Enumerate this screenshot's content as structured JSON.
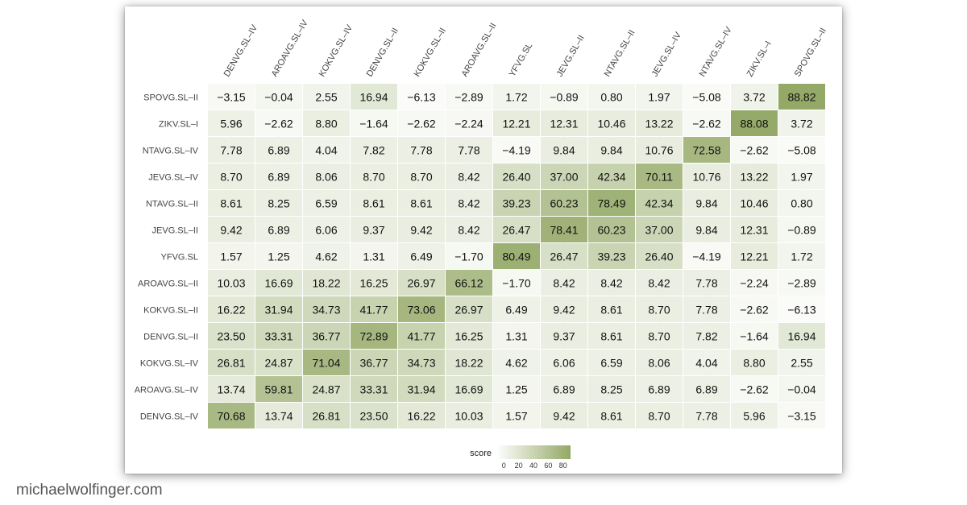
{
  "chart_data": {
    "type": "heatmap",
    "x_labels": [
      "DENVG.SL–IV",
      "AROAVG.SL–IV",
      "KOKVG.SL–IV",
      "DENVG.SL–II",
      "KOKVG.SL–II",
      "AROAVG.SL–II",
      "YFVG.SL",
      "JEVG.SL–II",
      "NTAVG.SL–II",
      "JEVG.SL–IV",
      "NTAVG.SL–IV",
      "ZIKV.SL–I",
      "SPOVG.SL–II"
    ],
    "y_labels": [
      "SPOVG.SL–II",
      "ZIKV.SL–I",
      "NTAVG.SL–IV",
      "JEVG.SL–IV",
      "NTAVG.SL–II",
      "JEVG.SL–II",
      "YFVG.SL",
      "AROAVG.SL–II",
      "KOKVG.SL–II",
      "DENVG.SL–II",
      "KOKVG.SL–IV",
      "AROAVG.SL–IV",
      "DENVG.SL–IV"
    ],
    "values": [
      [
        "−3.15",
        "−0.04",
        "2.55",
        "16.94",
        "−6.13",
        "−2.89",
        "1.72",
        "−0.89",
        "0.80",
        "1.97",
        "−5.08",
        "3.72",
        "88.82"
      ],
      [
        "5.96",
        "−2.62",
        "8.80",
        "−1.64",
        "−2.62",
        "−2.24",
        "12.21",
        "12.31",
        "10.46",
        "13.22",
        "−2.62",
        "88.08",
        "3.72"
      ],
      [
        "7.78",
        "6.89",
        "4.04",
        "7.82",
        "7.78",
        "7.78",
        "−4.19",
        "9.84",
        "9.84",
        "10.76",
        "72.58",
        "−2.62",
        "−5.08"
      ],
      [
        "8.70",
        "6.89",
        "8.06",
        "8.70",
        "8.70",
        "8.42",
        "26.40",
        "37.00",
        "42.34",
        "70.11",
        "10.76",
        "13.22",
        "1.97"
      ],
      [
        "8.61",
        "8.25",
        "6.59",
        "8.61",
        "8.61",
        "8.42",
        "39.23",
        "60.23",
        "78.49",
        "42.34",
        "9.84",
        "10.46",
        "0.80"
      ],
      [
        "9.42",
        "6.89",
        "6.06",
        "9.37",
        "9.42",
        "8.42",
        "26.47",
        "78.41",
        "60.23",
        "37.00",
        "9.84",
        "12.31",
        "−0.89"
      ],
      [
        "1.57",
        "1.25",
        "4.62",
        "1.31",
        "6.49",
        "−1.70",
        "80.49",
        "26.47",
        "39.23",
        "26.40",
        "−4.19",
        "12.21",
        "1.72"
      ],
      [
        "10.03",
        "16.69",
        "18.22",
        "16.25",
        "26.97",
        "66.12",
        "−1.70",
        "8.42",
        "8.42",
        "8.42",
        "7.78",
        "−2.24",
        "−2.89"
      ],
      [
        "16.22",
        "31.94",
        "34.73",
        "41.77",
        "73.06",
        "26.97",
        "6.49",
        "9.42",
        "8.61",
        "8.70",
        "7.78",
        "−2.62",
        "−6.13"
      ],
      [
        "23.50",
        "33.31",
        "36.77",
        "72.89",
        "41.77",
        "16.25",
        "1.31",
        "9.37",
        "8.61",
        "8.70",
        "7.82",
        "−1.64",
        "16.94"
      ],
      [
        "26.81",
        "24.87",
        "71.04",
        "36.77",
        "34.73",
        "18.22",
        "4.62",
        "6.06",
        "6.59",
        "8.06",
        "4.04",
        "8.80",
        "2.55"
      ],
      [
        "13.74",
        "59.81",
        "24.87",
        "33.31",
        "31.94",
        "16.69",
        "1.25",
        "6.89",
        "8.25",
        "6.89",
        "6.89",
        "−2.62",
        "−0.04"
      ],
      [
        "70.68",
        "13.74",
        "26.81",
        "23.50",
        "16.22",
        "10.03",
        "1.57",
        "9.42",
        "8.61",
        "8.70",
        "7.78",
        "5.96",
        "−3.15"
      ]
    ],
    "color_scale": {
      "low": "#ffffff",
      "high": "#93a865",
      "domain": [
        -10,
        90
      ]
    },
    "legend": {
      "title": "score",
      "ticks": [
        "0",
        "20",
        "40",
        "60",
        "80"
      ],
      "position": "bottom-center"
    }
  },
  "footer": {
    "credit": "michaelwolfinger.com"
  }
}
